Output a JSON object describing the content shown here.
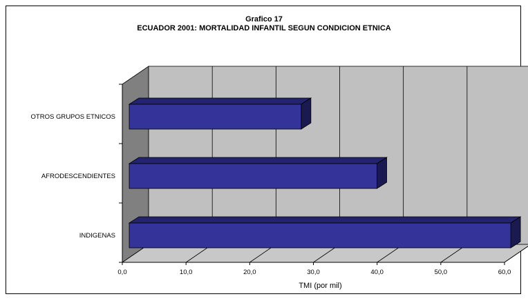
{
  "chart_data": {
    "type": "bar",
    "orientation": "horizontal",
    "style": "3d",
    "title": "Grafico 17",
    "subtitle": "ECUADOR 2001: MORTALIDAD INFANTIL SEGUN CONDICION ETNICA",
    "xlabel": "TMI (por mil)",
    "ylabel": "",
    "categories": [
      "OTROS GRUPOS ETNICOS",
      "AFRODESCENDIENTES",
      "INDIGENAS"
    ],
    "values": [
      27.0,
      38.9,
      59.9
    ],
    "xlim": [
      0,
      60
    ],
    "ticks": [
      "0,0",
      "10,0",
      "20,0",
      "30,0",
      "40,0",
      "50,0",
      "60,0"
    ],
    "tick_values": [
      0,
      10,
      20,
      30,
      40,
      50,
      60
    ],
    "grid": true,
    "legend": "none",
    "colors": {
      "bar_front": "#333399",
      "bar_top": "#24246e",
      "bar_side": "#1a1a50",
      "back_wall": "#c0c0c0",
      "side_wall": "#808080",
      "floor": "#c8c8c8"
    }
  }
}
